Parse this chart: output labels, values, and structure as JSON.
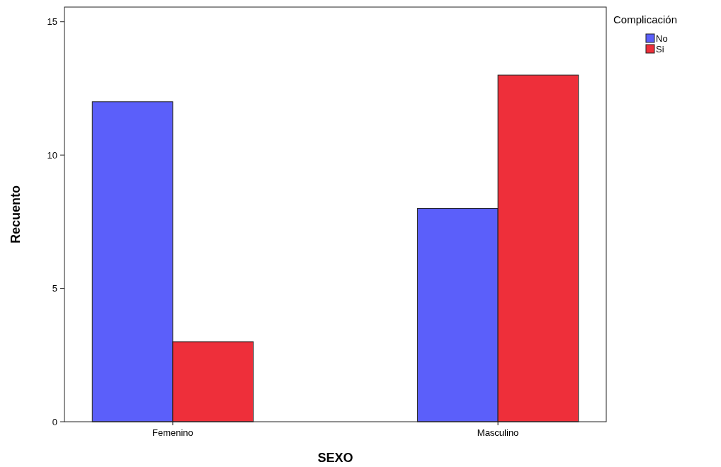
{
  "chart_data": {
    "type": "bar",
    "xlabel": "SEXO",
    "ylabel": "Recuento",
    "legend_title": "Complicación",
    "categories": [
      "Femenino",
      "Masculino"
    ],
    "series": [
      {
        "name": "No",
        "color": "#5b5ffa",
        "values": [
          12,
          8
        ]
      },
      {
        "name": "Si",
        "color": "#ee2f3a",
        "values": [
          3,
          13
        ]
      }
    ],
    "ylim": [
      0,
      15.55
    ],
    "yticks": [
      0,
      5,
      10,
      15
    ],
    "grid": false,
    "legend": "top right"
  }
}
